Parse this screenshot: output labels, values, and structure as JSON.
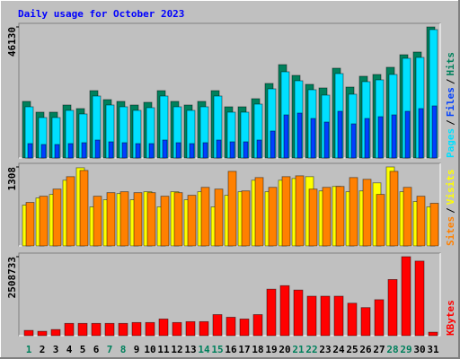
{
  "chart_data": [
    {
      "type": "bar",
      "title": "Daily usage for October 2023",
      "ylim": [
        0,
        46130
      ],
      "yticks": [
        46130
      ],
      "legend_separator": "/",
      "series": [
        {
          "name": "Hits",
          "color": "#00805c",
          "values": [
            19910,
            16120,
            16120,
            18640,
            17380,
            23700,
            20540,
            19910,
            18640,
            19590,
            23700,
            19910,
            18640,
            19910,
            23700,
            18010,
            18010,
            20860,
            26230,
            32860,
            29070,
            25910,
            24650,
            31600,
            24960,
            28760,
            29390,
            31920,
            36340,
            37290,
            46130
          ]
        },
        {
          "name": "Files",
          "color": "#0040ff",
          "values": [
            5056,
            4740,
            4740,
            5056,
            5372,
            6320,
            5688,
            5372,
            5056,
            5056,
            6320,
            5372,
            5056,
            5372,
            6320,
            5688,
            5688,
            6320,
            9480,
            15168,
            15800,
            13904,
            12640,
            16432,
            12008,
            13904,
            14536,
            15168,
            16432,
            17380,
            18328
          ]
        },
        {
          "name": "Pages",
          "color": "#00e0ff",
          "values": [
            18012,
            14220,
            14220,
            16748,
            15484,
            21804,
            18644,
            18012,
            16748,
            17696,
            21804,
            18012,
            16748,
            18012,
            21804,
            16116,
            16116,
            18960,
            24332,
            30336,
            27176,
            24016,
            22120,
            29704,
            22436,
            26860,
            27492,
            29388,
            35076,
            35392,
            45188
          ]
        }
      ]
    },
    {
      "type": "bar",
      "ylim": [
        0,
        1308
      ],
      "yticks": [
        1308
      ],
      "legend_separator": "/",
      "series": [
        {
          "name": "Visits",
          "color": "#ffff00",
          "values": [
            676,
            794,
            853,
            1088,
            1294,
            647,
            764,
            867,
            764,
            897,
            647,
            897,
            764,
            897,
            647,
            838,
            897,
            1088,
            897,
            1088,
            1117,
            1147,
            911,
            985,
            897,
            911,
            1044,
            1308,
            897,
            735,
            647
          ]
        },
        {
          "name": "Sites",
          "color": "#ff8000",
          "values": [
            720,
            823,
            941,
            1147,
            1250,
            823,
            882,
            897,
            882,
            882,
            823,
            882,
            838,
            970,
            941,
            1235,
            911,
            1132,
            970,
            1147,
            1161,
            941,
            970,
            985,
            1132,
            1103,
            853,
            1235,
            970,
            823,
            706
          ]
        }
      ]
    },
    {
      "type": "bar",
      "ylim": [
        0,
        2508733
      ],
      "yticks": [
        2508733
      ],
      "categories": [
        "1",
        "2",
        "3",
        "4",
        "5",
        "6",
        "7",
        "8",
        "9",
        "10",
        "11",
        "12",
        "13",
        "14",
        "15",
        "16",
        "17",
        "18",
        "19",
        "20",
        "21",
        "22",
        "23",
        "24",
        "25",
        "26",
        "27",
        "28",
        "29",
        "30",
        "31"
      ],
      "category_colors": [
        "#00805c",
        "#000000",
        "#000000",
        "#000000",
        "#000000",
        "#000000",
        "#00805c",
        "#00805c",
        "#000000",
        "#000000",
        "#000000",
        "#000000",
        "#000000",
        "#00805c",
        "#00805c",
        "#000000",
        "#000000",
        "#000000",
        "#000000",
        "#000000",
        "#00805c",
        "#00805c",
        "#000000",
        "#000000",
        "#000000",
        "#000000",
        "#000000",
        "#00805c",
        "#00805c",
        "#000000",
        "#000000"
      ],
      "series": [
        {
          "name": "KBytes",
          "color": "#ff0000",
          "values": [
            167250,
            139375,
            195125,
            390250,
            390250,
            390250,
            390250,
            390250,
            418125,
            418125,
            529625,
            418125,
            446000,
            446000,
            669000,
            585375,
            529625,
            669000,
            1477375,
            1588875,
            1449500,
            1254375,
            1254375,
            1254375,
            1031375,
            892000,
            1142875,
            1784000,
            2508733,
            2369375,
            111500
          ]
        }
      ]
    }
  ]
}
